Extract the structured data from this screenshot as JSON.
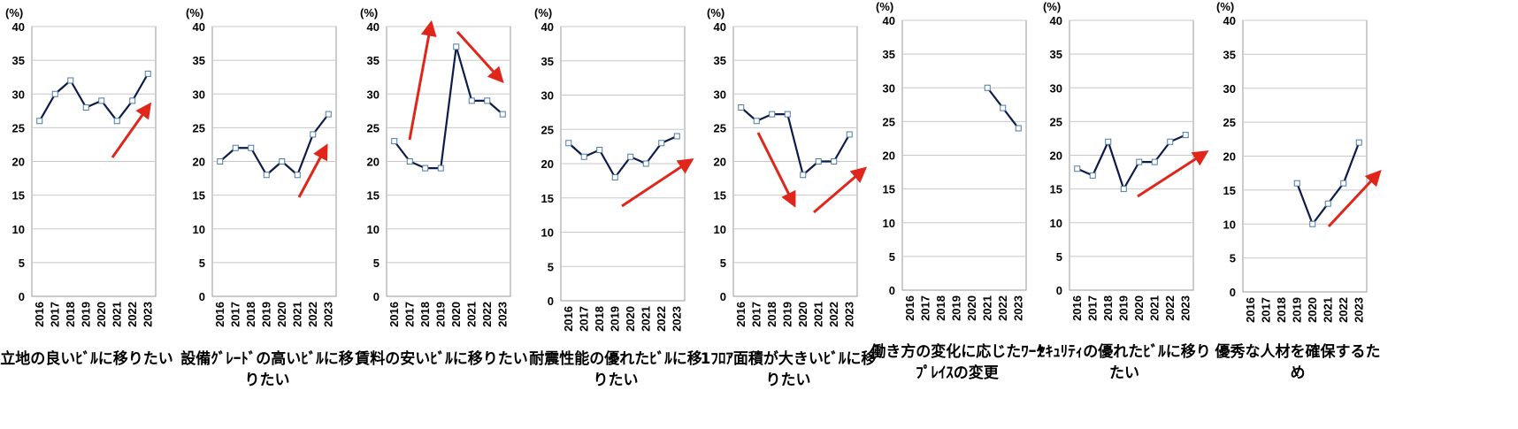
{
  "chart_data": [
    {
      "type": "line",
      "title": "立地の良いﾋﾞﾙに移りたい",
      "y_unit_label": "(%)",
      "categories": [
        "2016",
        "2017",
        "2018",
        "2019",
        "2020",
        "2021",
        "2022",
        "2023"
      ],
      "values": [
        26,
        30,
        32,
        28,
        29,
        26,
        29,
        33
      ],
      "ylim": [
        0,
        40
      ],
      "yticks": [
        0,
        5,
        10,
        15,
        20,
        25,
        30,
        35,
        40
      ],
      "ytick_labels": [
        "0",
        "5",
        "10",
        "15",
        "20",
        "25",
        "30",
        "35",
        "40"
      ],
      "grid": "horizontal",
      "trend_arrows": [
        "up"
      ]
    },
    {
      "type": "line",
      "title": "設備ｸﾞﾚｰﾄﾞの高いﾋﾞﾙに移りたい",
      "y_unit_label": "(%)",
      "categories": [
        "2016",
        "2017",
        "2018",
        "2019",
        "2020",
        "2021",
        "2022",
        "2023"
      ],
      "values": [
        20,
        22,
        22,
        18,
        20,
        18,
        24,
        27
      ],
      "ylim": [
        0,
        40
      ],
      "yticks": [
        0,
        5,
        10,
        15,
        20,
        25,
        30,
        35,
        40
      ],
      "ytick_labels": [
        "0",
        "5",
        "10",
        "15",
        "20",
        "25",
        "30",
        "35",
        "40"
      ],
      "grid": "horizontal",
      "trend_arrows": [
        "up"
      ]
    },
    {
      "type": "line",
      "title": "賃料の安いﾋﾞﾙに移りたい",
      "y_unit_label": "(%)",
      "categories": [
        "2016",
        "2017",
        "2018",
        "2019",
        "2020",
        "2021",
        "2022",
        "2023"
      ],
      "values": [
        23,
        20,
        19,
        19,
        37,
        29,
        29,
        27
      ],
      "ylim": [
        0,
        40
      ],
      "yticks": [
        0,
        5,
        10,
        15,
        20,
        25,
        30,
        35,
        40
      ],
      "ytick_labels": [
        "0",
        "5",
        "10",
        "15",
        "20",
        "25",
        "30",
        "35",
        "40"
      ],
      "grid": "horizontal",
      "trend_arrows": [
        "up",
        "down"
      ]
    },
    {
      "type": "line",
      "title": "耐震性能の優れたﾋﾞﾙに移りたい",
      "y_unit_label": "(%)",
      "categories": [
        "2016",
        "2017",
        "2018",
        "2019",
        "2020",
        "2021",
        "2022",
        "2023"
      ],
      "values": [
        23,
        21,
        22,
        18,
        21,
        20,
        23,
        24
      ],
      "ylim": [
        0,
        40
      ],
      "yticks": [
        0,
        5,
        10,
        15,
        20,
        25,
        30,
        35,
        40
      ],
      "ytick_labels": [
        "0",
        "5",
        "10",
        "15",
        "20",
        "25",
        "30",
        "35",
        "40"
      ],
      "grid": "horizontal",
      "trend_arrows": [
        "up"
      ]
    },
    {
      "type": "line",
      "title": "1ﾌﾛｱ面積が大きいﾋﾞﾙに移りたい",
      "y_unit_label": "(%)",
      "categories": [
        "2016",
        "2017",
        "2018",
        "2019",
        "2020",
        "2021",
        "2022",
        "2023"
      ],
      "values": [
        28,
        26,
        27,
        27,
        18,
        20,
        20,
        24
      ],
      "ylim": [
        0,
        40
      ],
      "yticks": [
        0,
        5,
        10,
        15,
        20,
        25,
        30,
        35,
        40
      ],
      "ytick_labels": [
        "0",
        "5",
        "10",
        "15",
        "20",
        "25",
        "30",
        "35",
        "40"
      ],
      "grid": "horizontal",
      "trend_arrows": [
        "down",
        "up"
      ]
    },
    {
      "type": "line",
      "title": "働き方の変化に応じたﾜｰｸﾌﾟﾚｲｽの変更",
      "y_unit_label": "(%)",
      "categories": [
        "2016",
        "2017",
        "2018",
        "2019",
        "2020",
        "2021",
        "2022",
        "2023"
      ],
      "values": [
        null,
        null,
        null,
        null,
        null,
        30,
        27,
        24
      ],
      "ylim": [
        0,
        40
      ],
      "yticks": [
        0,
        5,
        10,
        15,
        20,
        25,
        30,
        35,
        40
      ],
      "ytick_labels": [
        "0",
        "5",
        "10",
        "15",
        "20",
        "25",
        "30",
        "35",
        "40"
      ],
      "grid": "horizontal",
      "trend_arrows": []
    },
    {
      "type": "line",
      "title": "ｾｷｭﾘﾃｨの優れたﾋﾞﾙに移りたい",
      "y_unit_label": "(%)",
      "categories": [
        "2016",
        "2017",
        "2018",
        "2019",
        "2020",
        "2021",
        "2022",
        "2023"
      ],
      "values": [
        18,
        17,
        22,
        15,
        19,
        19,
        22,
        23
      ],
      "ylim": [
        0,
        40
      ],
      "yticks": [
        0,
        5,
        10,
        15,
        20,
        25,
        30,
        35,
        40
      ],
      "ytick_labels": [
        "0",
        "5",
        "10",
        "15",
        "20",
        "25",
        "30",
        "35",
        "40"
      ],
      "grid": "horizontal",
      "trend_arrows": [
        "up"
      ]
    },
    {
      "type": "line",
      "title": "優秀な人材を確保するため",
      "y_unit_label": "(%)",
      "categories": [
        "2016",
        "2017",
        "2018",
        "2019",
        "2020",
        "2021",
        "2022",
        "2023"
      ],
      "values": [
        null,
        null,
        null,
        16,
        10,
        13,
        16,
        22
      ],
      "ylim": [
        0,
        40
      ],
      "yticks": [
        0,
        5,
        10,
        15,
        20,
        25,
        30,
        35,
        40
      ],
      "ytick_labels": [
        "0",
        "5",
        "10",
        "15",
        "20",
        "25",
        "30",
        "35",
        "40"
      ],
      "grid": "horizontal",
      "trend_arrows": [
        "up"
      ]
    }
  ],
  "colors": {
    "line": "#0d1b4b",
    "marker_fill": "#ffffff",
    "marker_stroke": "#4a7ba6",
    "grid": "#c8c8c8",
    "axis": "#9a9a9a",
    "arrow": "#e0261a",
    "text": "#000000"
  }
}
